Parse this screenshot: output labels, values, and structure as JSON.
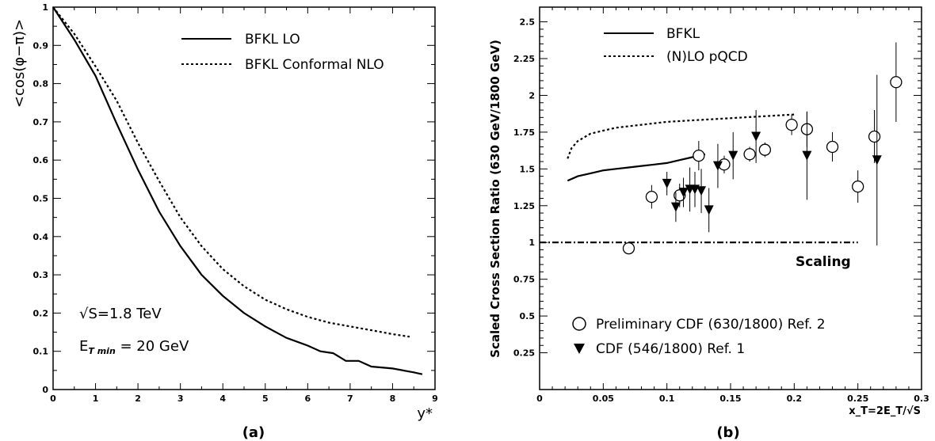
{
  "chart_data": [
    {
      "type": "line",
      "panel_label": "(a)",
      "xlabel": "y*",
      "ylabel": "<cos(φ−π)>",
      "xlim": [
        0,
        9
      ],
      "ylim": [
        0,
        1
      ],
      "xticks": [
        "0",
        "1",
        "2",
        "3",
        "4",
        "5",
        "6",
        "7",
        "8",
        "9"
      ],
      "yticks": [
        "0",
        "0.1",
        "0.2",
        "0.3",
        "0.4",
        "0.5",
        "0.6",
        "0.7",
        "0.8",
        "0.9",
        "1"
      ],
      "legend": [
        "BFKL LO",
        "BFKL Conformal NLO"
      ],
      "legend_position": "top-right",
      "annotations": [
        "√S=1.8 TeV",
        "E_T min = 20 GeV"
      ],
      "annotation_et_main": "E",
      "annotation_et_sub": "T min",
      "annotation_et_rest": " = 20 GeV",
      "series": [
        {
          "name": "BFKL LO",
          "style": "solid",
          "x": [
            0,
            0.5,
            1,
            1.5,
            2,
            2.5,
            3,
            3.5,
            4,
            4.5,
            5,
            5.5,
            6,
            6.3,
            6.6,
            6.9,
            7.2,
            7.5,
            8.0,
            8.5,
            8.7
          ],
          "y": [
            1.0,
            0.915,
            0.82,
            0.695,
            0.575,
            0.465,
            0.375,
            0.3,
            0.245,
            0.2,
            0.165,
            0.135,
            0.115,
            0.1,
            0.095,
            0.075,
            0.075,
            0.06,
            0.055,
            0.045,
            0.04
          ]
        },
        {
          "name": "BFKL Conformal NLO",
          "style": "dotted",
          "x": [
            0,
            0.5,
            1,
            1.5,
            2,
            2.5,
            3,
            3.5,
            4,
            4.5,
            5,
            5.5,
            6,
            6.5,
            7,
            7.5,
            8,
            8.4
          ],
          "y": [
            1.0,
            0.93,
            0.845,
            0.755,
            0.645,
            0.545,
            0.45,
            0.375,
            0.315,
            0.27,
            0.235,
            0.21,
            0.19,
            0.175,
            0.165,
            0.155,
            0.145,
            0.138
          ]
        }
      ]
    },
    {
      "type": "scatter",
      "panel_label": "(b)",
      "xlabel": "x_T=2E_T/√S",
      "ylabel": "Scaled Cross Section Ratio (630 GeV/1800 GeV)",
      "xlim": [
        0,
        0.3
      ],
      "ylim": [
        0,
        2.6
      ],
      "xticks": [
        "0",
        "0.05",
        "0.1",
        "0.15",
        "0.2",
        "0.25",
        "0.3"
      ],
      "yticks": [
        "0.25",
        "0.5",
        "0.75",
        "1",
        "1.25",
        "1.5",
        "1.75",
        "2",
        "2.25",
        "2.5"
      ],
      "legend": [
        "BFKL",
        "(N)LO pQCD"
      ],
      "legend_position": "top-left",
      "scaling_label": "Scaling",
      "markers_legend": [
        "Preliminary CDF (630/1800) Ref. 2",
        "CDF (546/1800) Ref. 1"
      ],
      "markers_legend_position": "bottom-left",
      "series": [
        {
          "name": "BFKL",
          "style": "solid",
          "x": [
            0.022,
            0.03,
            0.04,
            0.05,
            0.06,
            0.07,
            0.08,
            0.09,
            0.1,
            0.11,
            0.12,
            0.13
          ],
          "y": [
            1.42,
            1.45,
            1.47,
            1.49,
            1.5,
            1.51,
            1.52,
            1.53,
            1.54,
            1.56,
            1.58,
            1.6
          ]
        },
        {
          "name": "(N)LO pQCD",
          "style": "dotted",
          "x": [
            0.022,
            0.025,
            0.03,
            0.04,
            0.05,
            0.06,
            0.08,
            0.1,
            0.12,
            0.14,
            0.16,
            0.18,
            0.2
          ],
          "y": [
            1.57,
            1.64,
            1.69,
            1.74,
            1.76,
            1.78,
            1.8,
            1.82,
            1.83,
            1.84,
            1.85,
            1.86,
            1.87
          ]
        },
        {
          "name": "Scaling",
          "style": "dashdot",
          "x": [
            0,
            0.25
          ],
          "y": [
            1.0,
            1.0
          ]
        },
        {
          "name": "Preliminary CDF (630/1800) Ref. 2",
          "marker": "open-circle",
          "x": [
            0.07,
            0.088,
            0.11,
            0.125,
            0.145,
            0.165,
            0.177,
            0.198,
            0.21,
            0.23,
            0.25,
            0.263,
            0.28
          ],
          "y": [
            0.96,
            1.31,
            1.32,
            1.59,
            1.53,
            1.6,
            1.63,
            1.8,
            1.77,
            1.65,
            1.38,
            1.72,
            2.09
          ],
          "err": [
            0.02,
            0.08,
            0.08,
            0.1,
            0.06,
            0.05,
            0.05,
            0.07,
            0.12,
            0.1,
            0.11,
            0.18,
            0.27
          ]
        },
        {
          "name": "CDF (546/1800) Ref. 1",
          "marker": "filled-triangle-down",
          "x": [
            0.1,
            0.107,
            0.113,
            0.118,
            0.122,
            0.127,
            0.133,
            0.14,
            0.152,
            0.17,
            0.21,
            0.265
          ],
          "y": [
            1.4,
            1.24,
            1.34,
            1.36,
            1.36,
            1.35,
            1.22,
            1.52,
            1.59,
            1.72,
            1.59,
            1.56
          ],
          "err": [
            0.08,
            0.1,
            0.1,
            0.15,
            0.12,
            0.15,
            0.15,
            0.15,
            0.16,
            0.18,
            0.3,
            0.58
          ]
        }
      ]
    }
  ]
}
